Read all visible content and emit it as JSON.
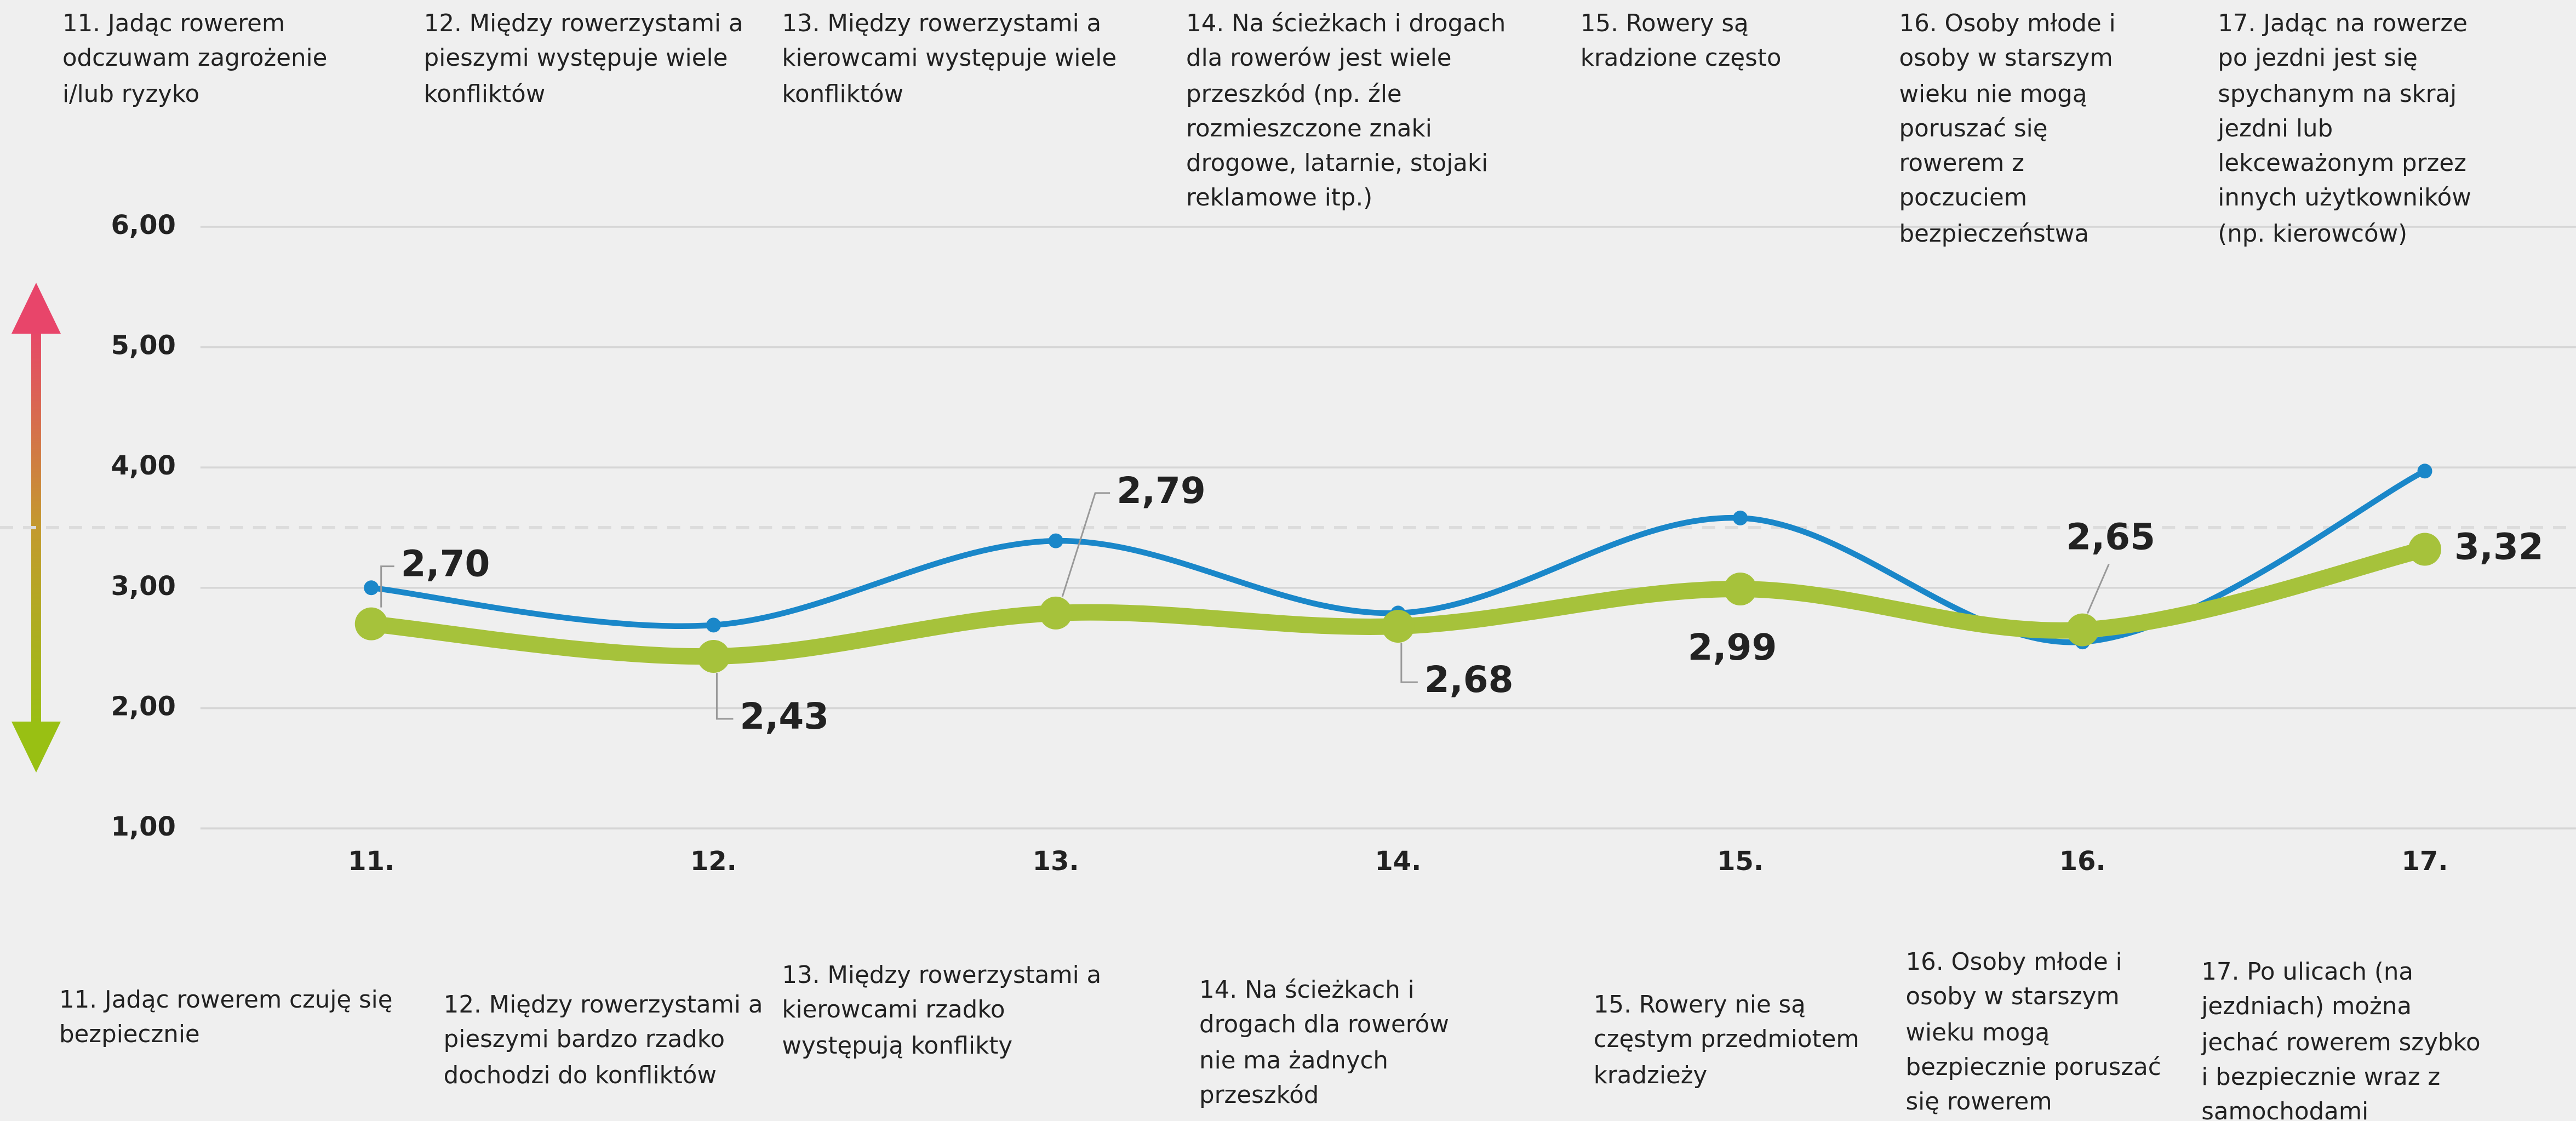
{
  "chart_data": {
    "type": "line",
    "categories": [
      "11.",
      "12.",
      "13.",
      "14.",
      "15.",
      "16.",
      "17."
    ],
    "series": [
      {
        "color": "#1a87c9",
        "values": [
          3.0,
          2.69,
          3.39,
          2.79,
          3.58,
          2.55,
          3.97
        ]
      },
      {
        "color": "#a6c23b",
        "values": [
          2.7,
          2.43,
          2.79,
          2.68,
          2.99,
          2.65,
          3.32
        ],
        "value_labels": [
          "2,70",
          "2,43",
          "2,79",
          "2,68",
          "2,99",
          "2,65",
          "3,32"
        ]
      }
    ],
    "ylim": [
      1,
      6
    ],
    "yticks": [
      {
        "value": 1,
        "label": "1,00"
      },
      {
        "value": 2,
        "label": "2,00"
      },
      {
        "value": 3,
        "label": "3,00"
      },
      {
        "value": 4,
        "label": "4,00"
      },
      {
        "value": 5,
        "label": "5,00"
      },
      {
        "value": 6,
        "label": "6,00"
      }
    ],
    "grid": true,
    "reference_line": 3.5,
    "top_labels": [
      "11. Jadąc rowerem odczuwam zagrożenie i/lub ryzyko",
      "12. Między rowerzystami a pieszymi występuje wiele konfliktów",
      "13. Między rowerzystami a kierowcami występuje wiele konfliktów",
      "14. Na ścieżkach i drogach dla rowerów jest wiele przeszkód (np. źle rozmieszczone znaki drogowe, latarnie, stojaki reklamowe itp.)",
      "15. Rowery są kradzione często",
      "16. Osoby młode i osoby w starszym wieku nie mogą poruszać się rowerem z poczuciem bezpieczeństwa",
      "17. Jadąc na rowerze po jezdni jest się spychanym na skraj jezdni lub lekceważonym przez innych użytkowników (np. kierowców)"
    ],
    "bottom_labels": [
      "11. Jadąc rowerem czuję się bezpiecznie",
      "12. Między rowerzystami a pieszymi bardzo rzadko dochodzi do konfliktów",
      "13. Między rowerzystami a kierowcami rzadko występują konflikty",
      "14. Na ścieżkach i drogach dla rowerów nie ma żadnych przeszkód",
      "15. Rowery nie są częstym przedmiotem kradzieży",
      "16. Osoby młode i osoby w starszym wieku mogą bezpiecznie poruszać się rowerem",
      "17. Po ulicach (na jezdniach) można jechać rowerem szybko i bezpiecznie wraz z samochodami"
    ]
  }
}
